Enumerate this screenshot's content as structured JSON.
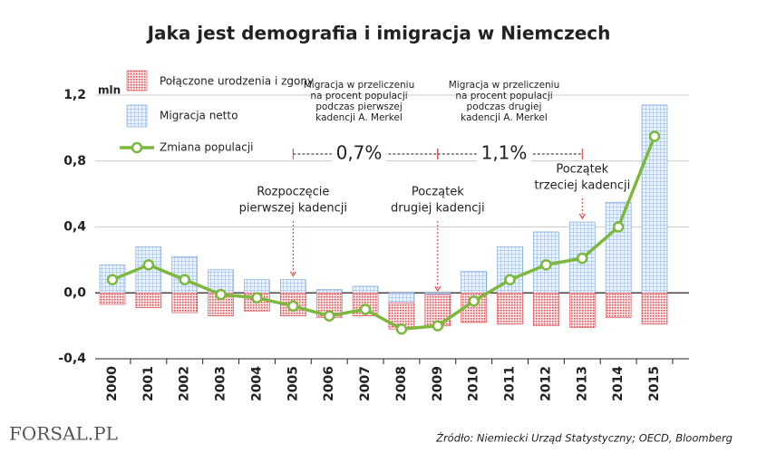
{
  "chart_data": {
    "type": "bar",
    "title": "Jaka jest demografia i imigracja w Niemczech",
    "y_unit": "mln",
    "categories": [
      "2000",
      "2001",
      "2002",
      "2003",
      "2004",
      "2005",
      "2006",
      "2007",
      "2008",
      "2009",
      "2010",
      "2011",
      "2012",
      "2013",
      "2014",
      "2015"
    ],
    "series": [
      {
        "name": "Połączone urodzenia i zgony",
        "color": "#e0474c",
        "values": [
          -0.07,
          -0.09,
          -0.12,
          -0.14,
          -0.11,
          -0.14,
          -0.15,
          -0.14,
          -0.16,
          -0.19,
          -0.18,
          -0.19,
          -0.2,
          -0.21,
          -0.15,
          -0.19
        ]
      },
      {
        "name": "Migracja netto",
        "color": "#6f9fd8",
        "values": [
          0.17,
          0.28,
          0.22,
          0.14,
          0.08,
          0.08,
          0.02,
          0.04,
          -0.06,
          -0.01,
          0.13,
          0.28,
          0.37,
          0.43,
          0.55,
          1.14
        ]
      },
      {
        "name": "Zmiana populacji",
        "type": "line",
        "color": "#7cb83e",
        "values": [
          0.08,
          0.17,
          0.08,
          -0.01,
          -0.03,
          -0.08,
          -0.14,
          -0.1,
          -0.22,
          -0.2,
          -0.05,
          0.08,
          0.17,
          0.21,
          0.4,
          0.95
        ]
      }
    ],
    "ylim": [
      -0.4,
      1.2
    ],
    "yticks": [
      {
        "value": -0.4,
        "label": "-0,4"
      },
      {
        "value": 0,
        "label": "0,0"
      },
      {
        "value": 0.4,
        "label": "0,4"
      },
      {
        "value": 0.8,
        "label": "0,8"
      },
      {
        "value": 1.2,
        "label": "1,2"
      }
    ],
    "grid": true,
    "annotations": [
      {
        "lines": [
          "Rozpoczęcie",
          "pierwszej kadencji"
        ]
      },
      {
        "lines": [
          "Początek",
          "drugiej kadencji"
        ]
      },
      {
        "lines": [
          "Początek",
          "trzeciej kadencji"
        ]
      },
      {
        "lines": [
          "Migracja w przeliczeniu",
          "na procent populacji",
          "podczas pierwszej",
          "kadencji A. Merkel"
        ],
        "value_label": "0,7%"
      },
      {
        "lines": [
          "Migracja w przeliczeniu",
          "na procent populacji",
          "podczas drugiej",
          "kadencji A. Merkel"
        ],
        "value_label": "1,1%"
      }
    ],
    "source": "Źródło:  Niemiecki Urząd Statystyczny; OECD, Bloomberg",
    "logo": "FORSAL.PL"
  }
}
